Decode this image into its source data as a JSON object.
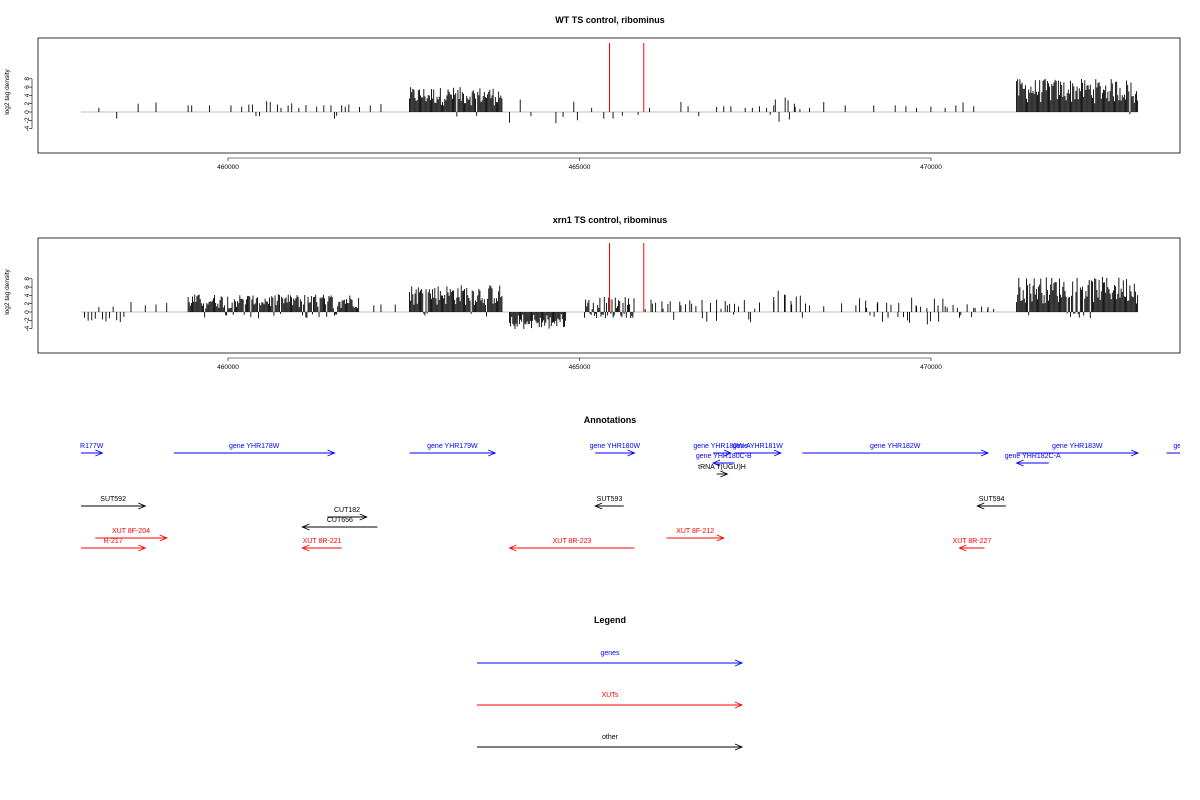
{
  "colors": {
    "gene": "#0000ff",
    "xut": "#ff0000",
    "other": "#000000",
    "marker": "#ff0000",
    "bar": "#000000",
    "baseline": "#aaaaaa",
    "frame": "#000000"
  },
  "chart_data": [
    {
      "type": "bar",
      "title": "WT TS control, ribominus",
      "ylabel": "log2 tag density",
      "xlim": [
        457800,
        472600
      ],
      "ylim": [
        -4.5,
        9
      ],
      "x_ticks": [
        460000,
        465000,
        470000
      ],
      "x_tick_labels": [
        "460000",
        "465000",
        "470000"
      ],
      "y_ticks": [
        -4,
        -2,
        0,
        2,
        4,
        6,
        8
      ],
      "y_tick_labels": [
        "-4",
        "-2",
        "0",
        "2",
        "4",
        "6",
        "8"
      ],
      "marker_lines_x": [
        465200,
        465680
      ],
      "dense_regions": [
        {
          "start": 462400,
          "end": 463700,
          "min_height": 1.5,
          "max_height": 6.0,
          "negative_fraction": 0.02
        },
        {
          "start": 470900,
          "end": 472600,
          "min_height": 2.0,
          "max_height": 8.0,
          "negative_fraction": 0.02
        }
      ],
      "sparse_bars": [
        [
          458050,
          1.0
        ],
        [
          458300,
          -1.6
        ],
        [
          458600,
          2.0
        ],
        [
          458850,
          2.3
        ],
        [
          459300,
          1.6
        ],
        [
          459350,
          1.6
        ],
        [
          459600,
          1.6
        ],
        [
          459900,
          1.6
        ],
        [
          460050,
          1.3
        ],
        [
          460150,
          1.8
        ],
        [
          460200,
          1.8
        ],
        [
          460250,
          -1.0
        ],
        [
          460300,
          -1.0
        ],
        [
          460400,
          2.6
        ],
        [
          460450,
          2.4
        ],
        [
          460550,
          1.8
        ],
        [
          460600,
          1.0
        ],
        [
          460700,
          1.6
        ],
        [
          460750,
          2.1
        ],
        [
          460850,
          1.0
        ],
        [
          460950,
          1.7
        ],
        [
          461100,
          1.3
        ],
        [
          461200,
          1.6
        ],
        [
          461300,
          1.6
        ],
        [
          461350,
          -1.6
        ],
        [
          461380,
          -0.9
        ],
        [
          461450,
          1.6
        ],
        [
          461500,
          1.3
        ],
        [
          461550,
          1.8
        ],
        [
          461700,
          1.2
        ],
        [
          461850,
          1.6
        ],
        [
          462000,
          1.9
        ],
        [
          463800,
          -2.6
        ],
        [
          463950,
          3.0
        ],
        [
          464100,
          -1.0
        ],
        [
          464450,
          -2.7
        ],
        [
          464550,
          -1.2
        ],
        [
          464700,
          2.5
        ],
        [
          464750,
          -2.0
        ],
        [
          464950,
          1.0
        ],
        [
          465120,
          -1.6
        ],
        [
          465250,
          -1.6
        ],
        [
          465380,
          -0.9
        ],
        [
          465600,
          -0.7
        ],
        [
          465760,
          1.0
        ],
        [
          466200,
          2.4
        ],
        [
          466300,
          1.4
        ],
        [
          466450,
          -1.0
        ],
        [
          466700,
          1.2
        ],
        [
          466800,
          1.4
        ],
        [
          466900,
          1.4
        ],
        [
          467100,
          1.0
        ],
        [
          467200,
          1.0
        ],
        [
          467300,
          1.4
        ],
        [
          467400,
          1.0
        ],
        [
          467500,
          1.6
        ],
        [
          467700,
          2.8
        ],
        [
          467800,
          1.2
        ],
        [
          468000,
          1.0
        ],
        [
          468200,
          2.4
        ],
        [
          468500,
          1.6
        ],
        [
          468900,
          1.6
        ],
        [
          469200,
          1.6
        ],
        [
          469350,
          1.4
        ],
        [
          469500,
          1.0
        ],
        [
          469700,
          1.3
        ],
        [
          469900,
          1.0
        ],
        [
          470050,
          1.6
        ],
        [
          470150,
          2.3
        ],
        [
          470300,
          1.4
        ]
      ],
      "clusters": [
        {
          "start": 467450,
          "end": 467900,
          "max_height": 3.6,
          "negative_fraction": 0.15
        }
      ]
    },
    {
      "type": "bar",
      "title": "xrn1 TS control, ribominus",
      "ylabel": "log2 tag density",
      "xlim": [
        457800,
        472600
      ],
      "ylim": [
        -4.5,
        9
      ],
      "x_ticks": [
        460000,
        465000,
        470000
      ],
      "x_tick_labels": [
        "460000",
        "465000",
        "470000"
      ],
      "y_ticks": [
        -4,
        -2,
        0,
        2,
        4,
        6,
        8
      ],
      "y_tick_labels": [
        "-4",
        "-2",
        "0",
        "2",
        "4",
        "6",
        "8"
      ],
      "marker_lines_x": [
        465200,
        465680
      ],
      "dense_regions": [
        {
          "start": 459300,
          "end": 461700,
          "min_height": 0.8,
          "max_height": 4.3,
          "negative_fraction": 0.12
        },
        {
          "start": 462400,
          "end": 463700,
          "min_height": 1.5,
          "max_height": 6.6,
          "negative_fraction": 0.05
        },
        {
          "start": 463800,
          "end": 464600,
          "min_height": 0.5,
          "max_height": -4.2,
          "negative_fraction": 1.0
        },
        {
          "start": 464850,
          "end": 465550,
          "min_height": 0.5,
          "max_height": 3.8,
          "negative_fraction": 0.4
        },
        {
          "start": 470900,
          "end": 472600,
          "min_height": 2.0,
          "max_height": 8.5,
          "negative_fraction": 0.05
        }
      ],
      "sparse_bars": [
        [
          457850,
          -1.4
        ],
        [
          457900,
          -2.1
        ],
        [
          457950,
          -2.0
        ],
        [
          458000,
          -1.6
        ],
        [
          458050,
          1.2
        ],
        [
          458100,
          -1.8
        ],
        [
          458150,
          -2.3
        ],
        [
          458200,
          -1.5
        ],
        [
          458250,
          1.3
        ],
        [
          458300,
          -2.0
        ],
        [
          458350,
          -2.4
        ],
        [
          458400,
          -1.2
        ],
        [
          458500,
          2.4
        ],
        [
          458700,
          1.6
        ],
        [
          458850,
          1.8
        ],
        [
          459000,
          2.2
        ],
        [
          461900,
          1.6
        ],
        [
          462000,
          1.8
        ],
        [
          462200,
          1.8
        ],
        [
          465800,
          2.0
        ],
        [
          465950,
          0.8
        ],
        [
          466050,
          2.6
        ],
        [
          466200,
          1.6
        ],
        [
          466350,
          2.0
        ],
        [
          466500,
          -1.5
        ],
        [
          466700,
          3.0
        ],
        [
          466850,
          1.6
        ],
        [
          466950,
          2.0
        ],
        [
          467150,
          -1.8
        ],
        [
          467300,
          2.3
        ],
        [
          467500,
          2.6
        ],
        [
          467650,
          4.2
        ],
        [
          467750,
          1.8
        ],
        [
          467900,
          -1.4
        ],
        [
          468000,
          1.6
        ],
        [
          468200,
          1.4
        ],
        [
          468450,
          2.1
        ],
        [
          468650,
          1.6
        ],
        [
          468800,
          1.0
        ],
        [
          468950,
          2.0
        ],
        [
          469100,
          -1.4
        ],
        [
          469250,
          2.2
        ],
        [
          469400,
          -2.6
        ],
        [
          469500,
          1.3
        ],
        [
          469650,
          -3.0
        ],
        [
          469800,
          1.6
        ],
        [
          469900,
          1.4
        ],
        [
          470100,
          -1.4
        ],
        [
          470300,
          1.0
        ],
        [
          470500,
          1.2
        ]
      ],
      "clusters": [
        {
          "start": 465700,
          "end": 467300,
          "max_height": 3.4,
          "negative_fraction": 0.25
        },
        {
          "start": 467500,
          "end": 467950,
          "max_height": 5.6,
          "negative_fraction": 0.15
        },
        {
          "start": 468700,
          "end": 470600,
          "max_height": 3.6,
          "negative_fraction": 0.3
        }
      ]
    }
  ],
  "annotations": {
    "title": "Annotations",
    "features": [
      {
        "label": "R177W",
        "category": "gene",
        "start": 457800,
        "end": 458100,
        "strand": "+",
        "row": 0
      },
      {
        "label": "gene YHR178W",
        "category": "gene",
        "start": 459100,
        "end": 461350,
        "strand": "+",
        "row": 0
      },
      {
        "label": "gene YHR179W",
        "category": "gene",
        "start": 462400,
        "end": 463600,
        "strand": "+",
        "row": 0
      },
      {
        "label": "gene YHR180W",
        "category": "gene",
        "start": 465000,
        "end": 465550,
        "strand": "+",
        "row": 0
      },
      {
        "label": "gene YHR180W-A",
        "category": "gene",
        "start": 466650,
        "end": 466900,
        "strand": "+",
        "row": 0
      },
      {
        "label": "gene YHR181W",
        "category": "gene",
        "start": 466950,
        "end": 467600,
        "strand": "+",
        "row": 0
      },
      {
        "label": "gene YHR182W",
        "category": "gene",
        "start": 467900,
        "end": 470500,
        "strand": "+",
        "row": 0
      },
      {
        "label": "gene YHR183W",
        "category": "gene",
        "start": 470900,
        "end": 472600,
        "strand": "+",
        "row": 0
      },
      {
        "label": "gene Y",
        "category": "gene",
        "start": 473000,
        "end": 473500,
        "strand": "+",
        "row": 0
      },
      {
        "label": "gene YHR180C-B",
        "category": "gene",
        "start": 466650,
        "end": 466950,
        "strand": "-",
        "row": 1
      },
      {
        "label": "gene YHR182C-A",
        "category": "gene",
        "start": 470900,
        "end": 471350,
        "strand": "-",
        "row": 1
      },
      {
        "label": "tRNA T(UGU)H",
        "category": "other",
        "start": 466700,
        "end": 466850,
        "strand": "+",
        "row": 2
      },
      {
        "label": "SUT592",
        "category": "other",
        "start": 457800,
        "end": 458700,
        "strand": "+",
        "row": 3
      },
      {
        "label": "SUT593",
        "category": "other",
        "start": 465000,
        "end": 465400,
        "strand": "-",
        "row": 3
      },
      {
        "label": "SUT594",
        "category": "other",
        "start": 470350,
        "end": 470750,
        "strand": "-",
        "row": 3
      },
      {
        "label": "CUT182",
        "category": "other",
        "start": 461250,
        "end": 461800,
        "strand": "+",
        "row": 4
      },
      {
        "label": "CUT656",
        "category": "other",
        "start": 460900,
        "end": 461950,
        "strand": "-",
        "row": 5
      },
      {
        "label": "XUT 8F-204",
        "category": "xut",
        "start": 458000,
        "end": 459000,
        "strand": "+",
        "row": 6
      },
      {
        "label": "XUT 8F-212",
        "category": "xut",
        "start": 466000,
        "end": 466800,
        "strand": "+",
        "row": 6
      },
      {
        "label": "R-217",
        "category": "xut",
        "start": 457800,
        "end": 458700,
        "strand": "+",
        "row": 7
      },
      {
        "label": "XUT 8R-221",
        "category": "xut",
        "start": 460900,
        "end": 461450,
        "strand": "-",
        "row": 7
      },
      {
        "label": "XUT 8R-223",
        "category": "xut",
        "start": 463800,
        "end": 465550,
        "strand": "-",
        "row": 7
      },
      {
        "label": "XUT 8R-227",
        "category": "xut",
        "start": 470100,
        "end": 470450,
        "strand": "-",
        "row": 7
      }
    ]
  },
  "legend": {
    "title": "Legend",
    "items": [
      {
        "label": "genes",
        "category": "gene"
      },
      {
        "label": "XUTs",
        "category": "xut"
      },
      {
        "label": "other",
        "category": "other"
      }
    ]
  }
}
